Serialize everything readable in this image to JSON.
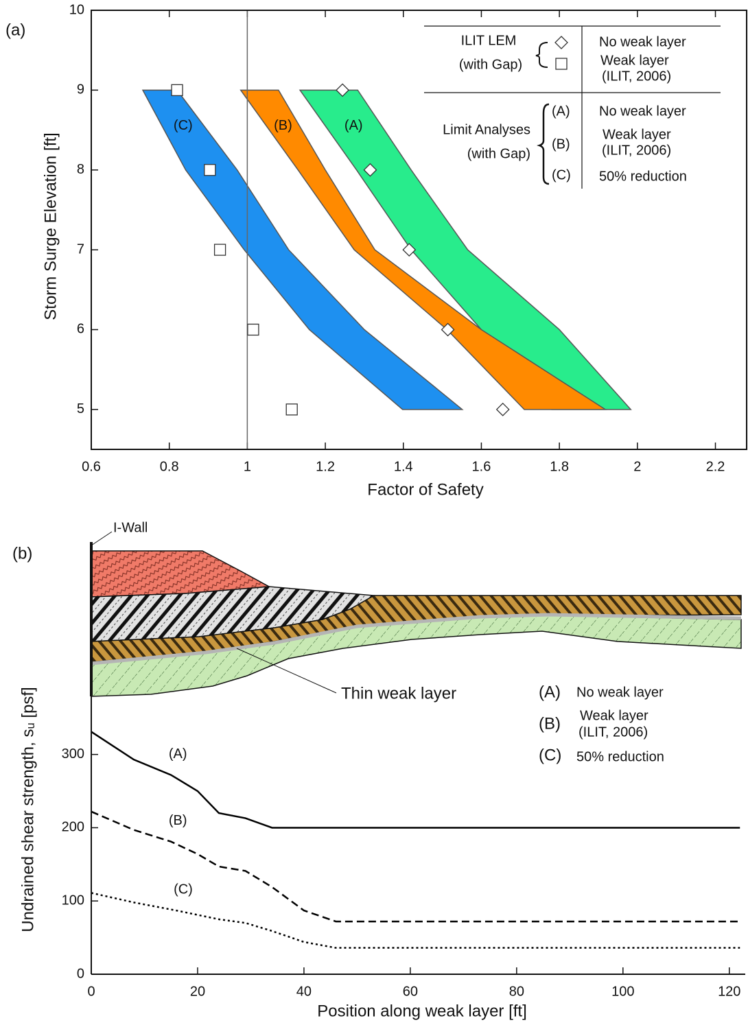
{
  "chart_data": [
    {
      "type": "band",
      "panel_label": "(a)",
      "x_label": "Factor of Safety",
      "y_label": "Storm Surge Elevation [ft]",
      "xlim": [
        0.6,
        2.28
      ],
      "ylim": [
        4.5,
        10
      ],
      "xticks": [
        0.6,
        0.8,
        1,
        1.2,
        1.4,
        1.6,
        1.8,
        2,
        2.2
      ],
      "yticks": [
        5,
        6,
        7,
        8,
        9,
        10
      ],
      "reference_x": 1,
      "y_levels": [
        9,
        8,
        7,
        6,
        5
      ],
      "bands": [
        {
          "name": "(A)",
          "description": [
            "No weak layer"
          ],
          "color": "#28ec8c",
          "lower": [
            1.135,
            1.28,
            1.42,
            1.6,
            1.78
          ],
          "upper": [
            1.283,
            1.42,
            1.565,
            1.8,
            1.983
          ]
        },
        {
          "name": "(B)",
          "description": [
            "Weak layer",
            "(ILIT, 2006)"
          ],
          "color": "#ff8a00",
          "lower": [
            0.983,
            1.13,
            1.274,
            1.512,
            1.71
          ],
          "upper": [
            1.08,
            1.2,
            1.327,
            1.6,
            1.918
          ]
        },
        {
          "name": "(C)",
          "description": [
            "50% reduction"
          ],
          "color": "#1e90f0",
          "lower": [
            0.732,
            0.842,
            0.992,
            1.159,
            1.398
          ],
          "upper": [
            0.82,
            0.974,
            1.106,
            1.3,
            1.551
          ]
        }
      ],
      "markers": [
        {
          "name": [
            "No weak layer"
          ],
          "marker": "diamond",
          "x": [
            1.244,
            1.315,
            1.415,
            1.514,
            1.655
          ],
          "y": [
            9,
            8,
            7,
            6,
            5
          ]
        },
        {
          "name": [
            "Weak layer",
            "(ILIT, 2006)"
          ],
          "marker": "square",
          "x": [
            0.82,
            0.904,
            0.93,
            1.015,
            1.114
          ],
          "y": [
            9,
            8,
            7,
            6,
            5
          ]
        }
      ],
      "legend_groups": [
        {
          "title": [
            "ILIT LEM",
            "(with Gap)"
          ]
        },
        {
          "title": [
            "Limit Analyses",
            "(with Gap)"
          ]
        }
      ]
    },
    {
      "type": "line",
      "panel_label": "(b)",
      "x_label": "Position along weak layer [ft]",
      "y_label": "Undrained shear strength, sᵤ [psf]",
      "xlim": [
        0,
        123
      ],
      "ylim": [
        0,
        590
      ],
      "xticks": [
        0,
        20,
        40,
        60,
        80,
        100,
        120
      ],
      "yticks": [
        0,
        100,
        200,
        300
      ],
      "series": [
        {
          "name": "(A)",
          "description": [
            "No weak layer"
          ],
          "color": "#000000",
          "dash": "solid",
          "x": [
            0,
            8,
            15,
            20,
            24,
            29,
            34,
            122
          ],
          "values": [
            331,
            293,
            272,
            250,
            220,
            213,
            200,
            200
          ]
        },
        {
          "name": "(B)",
          "description": [
            "Weak layer",
            "(ILIT, 2006)"
          ],
          "color": "#000000",
          "dash": "dashed",
          "x": [
            0,
            8,
            15,
            20,
            24,
            29,
            34,
            40,
            46,
            122
          ],
          "values": [
            222,
            197,
            181,
            164,
            147,
            141,
            119,
            87,
            72,
            72
          ]
        },
        {
          "name": "(C)",
          "description": [
            "50% reduction"
          ],
          "color": "#000000",
          "dash": "dotted",
          "x": [
            0,
            8,
            16,
            24,
            29,
            34,
            40,
            46,
            122
          ],
          "values": [
            111,
            98,
            87,
            75,
            70,
            59,
            44,
            36,
            36
          ]
        }
      ],
      "annotations": {
        "wall": "I-Wall",
        "weak_layer": "Thin weak layer"
      }
    }
  ]
}
